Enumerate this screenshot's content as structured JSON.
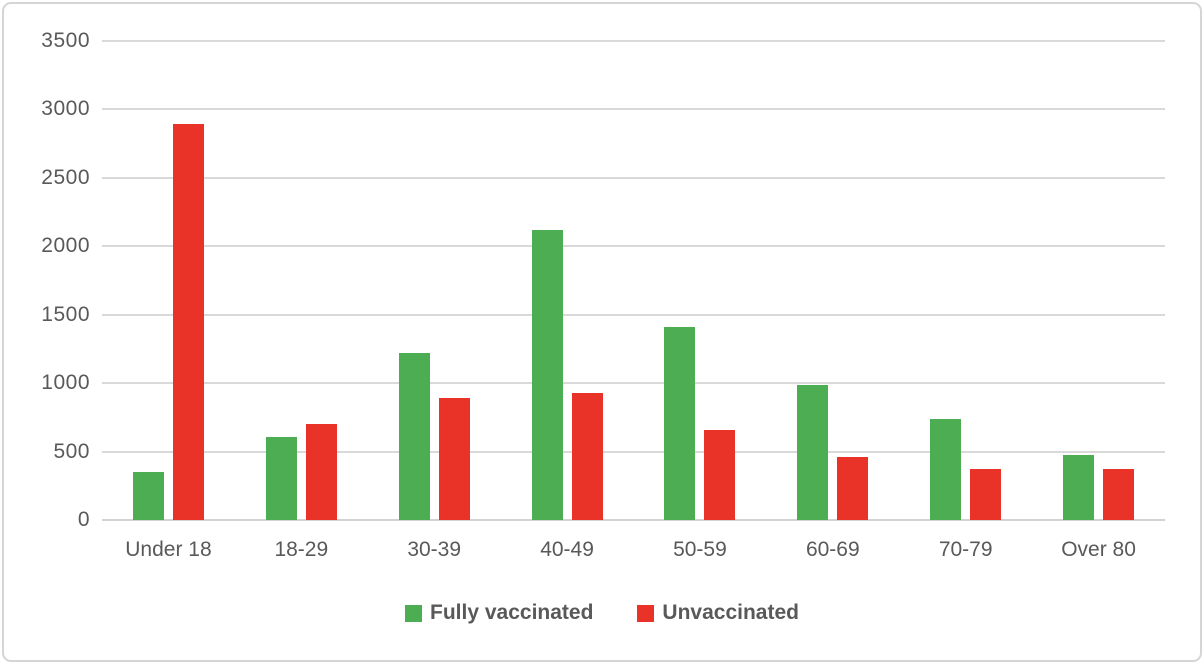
{
  "colors": {
    "fully_vaccinated": "#4dad53",
    "unvaccinated": "#e93328",
    "axis_text": "#595959",
    "gridline": "#d9d9d9",
    "frame_border": "#d5d5d5"
  },
  "chart_data": {
    "type": "bar",
    "title": "",
    "xlabel": "",
    "ylabel": "",
    "categories": [
      "Under 18",
      "18-29",
      "30-39",
      "40-49",
      "50-59",
      "60-69",
      "70-79",
      "Over 80"
    ],
    "series": [
      {
        "name": "Fully vaccinated",
        "color_key": "fully_vaccinated",
        "values": [
          350,
          610,
          1220,
          2120,
          1410,
          990,
          740,
          475
        ]
      },
      {
        "name": "Unvaccinated",
        "color_key": "unvaccinated",
        "values": [
          2890,
          700,
          890,
          930,
          660,
          460,
          375,
          375
        ]
      }
    ],
    "ylim": [
      0,
      3500
    ],
    "ytick_interval": 500,
    "ytick_labels": [
      "3500",
      "3000",
      "2500",
      "2000",
      "1500",
      "1000",
      "500",
      "0"
    ],
    "grid": true,
    "legend_position": "bottom"
  }
}
